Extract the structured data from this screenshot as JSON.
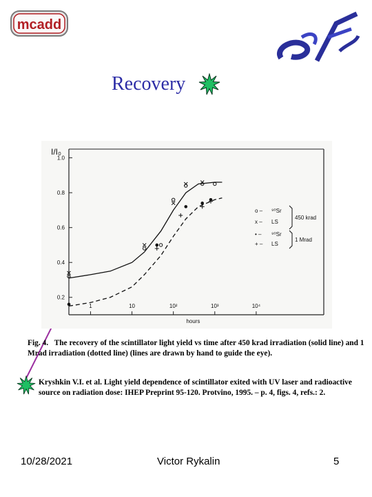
{
  "logo_left": {
    "text": "mcadd"
  },
  "slide": {
    "title": "Recovery"
  },
  "chart_data": {
    "type": "line",
    "ylabel": "I/I₀",
    "xlabel": "hours",
    "x_scale": "log",
    "x_ticks": [
      "1",
      "10",
      "10²",
      "10³",
      "10⁴"
    ],
    "y_ticks": [
      "0.2",
      "0.4",
      "0.6",
      "0.8",
      "1.0"
    ],
    "ylim": [
      0.1,
      1.05
    ],
    "series": [
      {
        "name": "⁹⁰Sr 450 krad",
        "marker": "o",
        "style": "solid",
        "points": [
          [
            0.3,
            0.32
          ],
          [
            20,
            0.48
          ],
          [
            50,
            0.5
          ],
          [
            100,
            0.76
          ],
          [
            200,
            0.84
          ],
          [
            500,
            0.85
          ],
          [
            1000,
            0.85
          ]
        ]
      },
      {
        "name": "LS 450 krad",
        "marker": "x",
        "style": "solid",
        "points": [
          [
            0.3,
            0.34
          ],
          [
            20,
            0.5
          ],
          [
            100,
            0.74
          ],
          [
            200,
            0.85
          ],
          [
            500,
            0.86
          ]
        ]
      },
      {
        "name": "⁹⁰Sr 1 Mrad",
        "marker": "•",
        "style": "dashed",
        "points": [
          [
            0.3,
            0.16
          ],
          [
            40,
            0.5
          ],
          [
            200,
            0.72
          ],
          [
            500,
            0.74
          ],
          [
            800,
            0.76
          ]
        ]
      },
      {
        "name": "LS 1 Mrad",
        "marker": "+",
        "style": "dashed",
        "points": [
          [
            40,
            0.48
          ],
          [
            150,
            0.67
          ],
          [
            500,
            0.72
          ],
          [
            800,
            0.75
          ]
        ]
      }
    ],
    "solid_curve": [
      [
        0.3,
        0.31
      ],
      [
        1,
        0.33
      ],
      [
        3,
        0.35
      ],
      [
        10,
        0.4
      ],
      [
        20,
        0.46
      ],
      [
        50,
        0.58
      ],
      [
        100,
        0.7
      ],
      [
        200,
        0.8
      ],
      [
        400,
        0.85
      ],
      [
        1000,
        0.86
      ],
      [
        1500,
        0.86
      ]
    ],
    "dashed_curve": [
      [
        0.3,
        0.15
      ],
      [
        1,
        0.17
      ],
      [
        3,
        0.2
      ],
      [
        10,
        0.26
      ],
      [
        20,
        0.33
      ],
      [
        50,
        0.44
      ],
      [
        100,
        0.55
      ],
      [
        200,
        0.65
      ],
      [
        400,
        0.72
      ],
      [
        1000,
        0.76
      ],
      [
        1500,
        0.77
      ]
    ],
    "legend": {
      "rows": [
        {
          "marker": "o –",
          "label": "⁹⁰Sr"
        },
        {
          "marker": "x –",
          "label": "LS"
        },
        {
          "marker": "• –",
          "label": "⁹⁰Sr"
        },
        {
          "marker": "+ –",
          "label": "LS"
        }
      ],
      "group1": "450 krad",
      "group2": "1 Mrad"
    }
  },
  "caption": {
    "label": "Fig. 4.",
    "text": "The recovery of the scintillator light yield vs time after 450 krad irradiation (solid line) and 1 Mrad irradiation (dotted line) (lines are drawn by hand to guide the eye)."
  },
  "reference": {
    "text": "Kryshkin V.I. et al. Light yield dependence of scintillator exited with UV laser and radioactive source on radiation dose: IHEP Preprint 95-120. Protvino, 1995. – p. 4, figs. 4, refs.: 2."
  },
  "footer": {
    "date": "10/28/2021",
    "author": "Victor Rykalin",
    "page": "5"
  },
  "colors": {
    "title": "#2c2ca6",
    "burst_fill": "#1fbf63",
    "arrow": "#9b2fa0",
    "logo_red": "#b21f24",
    "logo_right": "#2a2f9a"
  }
}
